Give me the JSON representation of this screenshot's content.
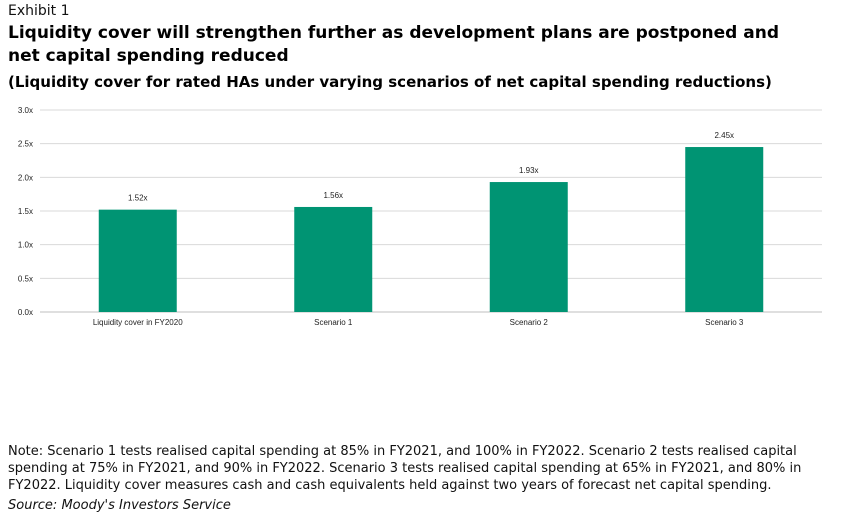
{
  "exhibit_label": "Exhibit 1",
  "title": "Liquidity cover will strengthen further as development plans are postponed and net capital spending reduced",
  "subtitle": "(Liquidity cover for rated HAs under varying scenarios of net capital spending reductions)",
  "note": "Note: Scenario 1 tests realised capital spending at 85% in FY2021, and 100% in FY2022. Scenario 2 tests realised capital spending at 75% in FY2021, and 90% in FY2022. Scenario 3 tests realised capital spending at 65% in FY2021, and 80% in FY2022. Liquidity cover measures cash and cash equivalents held against two years of forecast net capital spending.",
  "source": "Source: Moody's Investors Service",
  "chart_data": {
    "type": "bar",
    "categories": [
      "Liquidity cover in FY2020",
      "Scenario 1",
      "Scenario 2",
      "Scenario 3"
    ],
    "values": [
      1.52,
      1.56,
      1.93,
      2.45
    ],
    "data_labels": [
      "1.52x",
      "1.56x",
      "1.93x",
      "2.45x"
    ],
    "yticks": [
      0,
      0.5,
      1.0,
      1.5,
      2.0,
      2.5,
      3.0
    ],
    "ytick_labels": [
      "0.0x",
      "0.5x",
      "1.0x",
      "1.5x",
      "2.0x",
      "2.5x",
      "3.0x"
    ],
    "ylim": [
      0,
      3.0
    ],
    "grid": true,
    "bar_color": "#009473",
    "grid_color": "#d9d9d9"
  }
}
